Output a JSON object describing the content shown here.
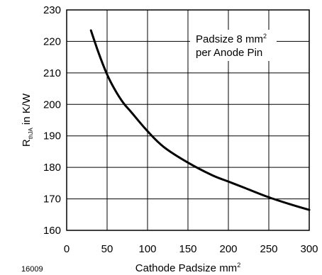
{
  "figure_id": "16009",
  "chart_data": {
    "type": "line",
    "title": "",
    "xlabel": "Cathode Padsize mm²",
    "ylabel": "R thJA in K/W",
    "ylabel_parts": {
      "main": "R",
      "sub": "thJA",
      "rest": " in K/W"
    },
    "xlabel_parts": {
      "main": "Cathode Padsize mm",
      "sup": "2"
    },
    "xlim": [
      0,
      300
    ],
    "ylim": [
      160,
      230
    ],
    "x_ticks": [
      "0",
      "50",
      "100",
      "150",
      "200",
      "250",
      "300"
    ],
    "y_ticks": [
      "160",
      "170",
      "180",
      "190",
      "200",
      "210",
      "220",
      "230"
    ],
    "grid": true,
    "annotation": {
      "line1_main": "Padsize 8 mm",
      "line1_sup": "2",
      "line2": "per Anode Pin"
    },
    "series": [
      {
        "x": [
          30,
          40,
          50,
          60,
          70,
          80,
          100,
          120,
          150,
          180,
          200,
          220,
          250,
          280,
          300
        ],
        "y": [
          223.5,
          216,
          209.5,
          204.5,
          200.5,
          197.5,
          191.5,
          186.5,
          181.5,
          177.5,
          175.5,
          173.5,
          170.5,
          168,
          166.5
        ]
      }
    ],
    "colors": {
      "line": "#000000",
      "grid": "#000000",
      "background": "#ffffff"
    }
  }
}
